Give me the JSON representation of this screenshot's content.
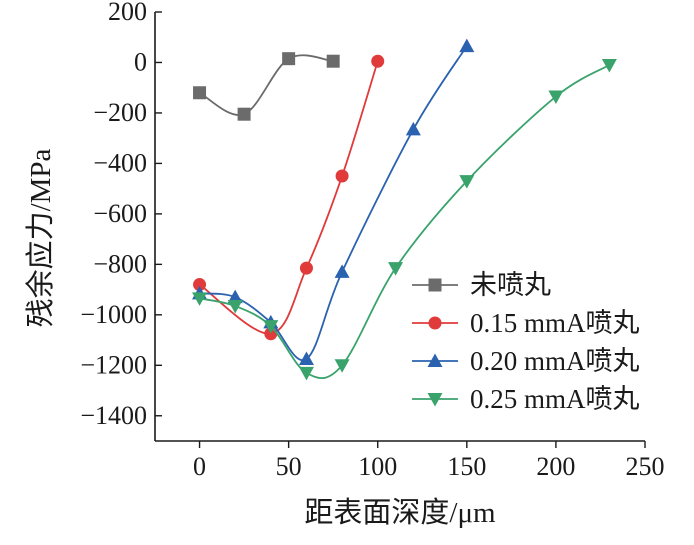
{
  "chart_data": {
    "type": "line",
    "xlabel": "距表面深度/μm",
    "ylabel": "残余应力/MPa",
    "xlim": [
      -25,
      250
    ],
    "ylim": [
      -1500,
      200
    ],
    "x_ticks": [
      0,
      50,
      100,
      150,
      200,
      250
    ],
    "y_ticks": [
      200,
      0,
      -200,
      -400,
      -600,
      -800,
      -1000,
      -1200,
      -1400
    ],
    "x_tick_labels": [
      "0",
      "50",
      "100",
      "150",
      "200",
      "250"
    ],
    "y_tick_labels": [
      "200",
      "0",
      "−200",
      "−400",
      "−600",
      "−800",
      "−1000",
      "−1200",
      "−1400"
    ],
    "legend_position": "right",
    "grid": false,
    "series": [
      {
        "name": "未喷丸",
        "color": "#6b6b6b",
        "marker": "square",
        "x": [
          0,
          25,
          50,
          75
        ],
        "y": [
          -120,
          -205,
          15,
          5
        ]
      },
      {
        "name": "0.15 mmA喷丸",
        "color": "#e03a3a",
        "marker": "circle",
        "x": [
          0,
          40,
          60,
          80,
          100
        ],
        "y": [
          -880,
          -1075,
          -815,
          -450,
          5
        ]
      },
      {
        "name": "0.20 mmA喷丸",
        "color": "#2a62b0",
        "marker": "triangle-up",
        "x": [
          0,
          20,
          40,
          60,
          80,
          120,
          150
        ],
        "y": [
          -915,
          -930,
          -1030,
          -1175,
          -830,
          -265,
          65
        ]
      },
      {
        "name": "0.25 mmA喷丸",
        "color": "#3aa36b",
        "marker": "triangle-down",
        "x": [
          0,
          20,
          40,
          60,
          80,
          110,
          150,
          200,
          230
        ],
        "y": [
          -935,
          -965,
          -1045,
          -1230,
          -1200,
          -815,
          -470,
          -135,
          -10
        ]
      }
    ]
  }
}
